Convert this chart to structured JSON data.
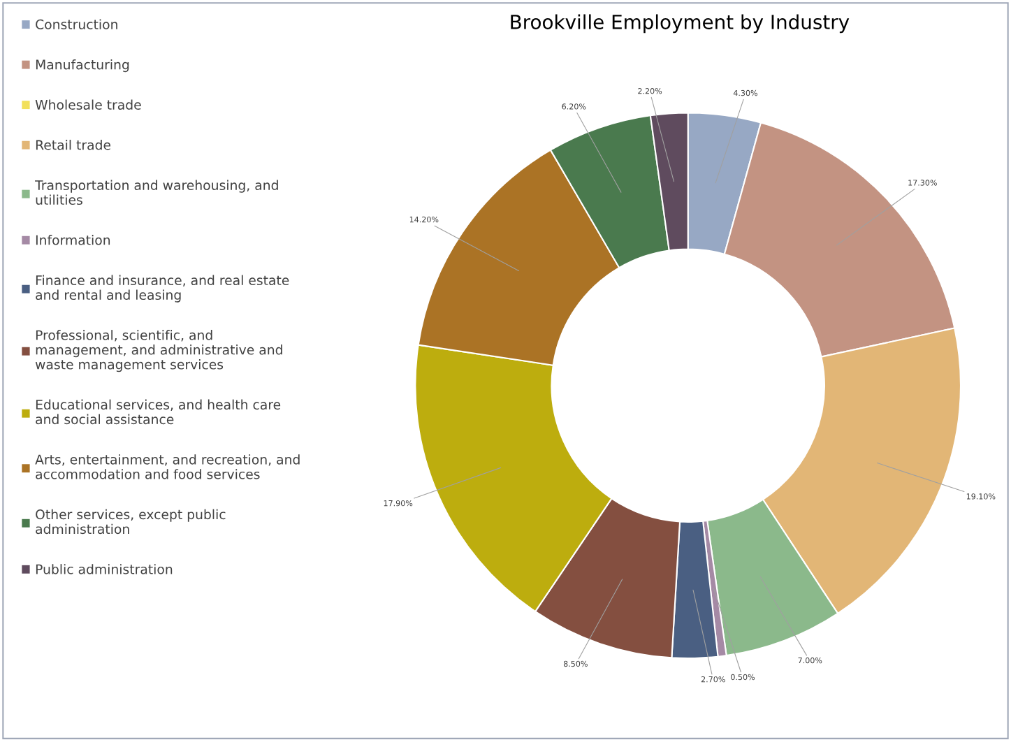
{
  "chart_data": {
    "type": "donut",
    "title": "Brookville Employment by Industry",
    "categories": [
      "Construction",
      "Manufacturing",
      "Wholesale trade",
      "Retail trade",
      "Transportation and warehousing, and\nutilities",
      "Information",
      "Finance and insurance, and real estate\nand rental and leasing",
      "Professional, scientific, and\nmanagement, and administrative and\nwaste management services",
      "Educational services, and health care\nand social assistance",
      "Arts, entertainment, and recreation, and\naccommodation and food services",
      "Other services, except public\nadministration",
      "Public administration"
    ],
    "values": [
      4.3,
      17.3,
      0,
      19.1,
      7.0,
      0.5,
      2.7,
      8.5,
      17.9,
      14.2,
      6.2,
      2.2
    ],
    "value_labels": [
      "4.30%",
      "17.30%",
      null,
      "19.10%",
      "7.00%",
      "0.50%",
      "2.70%",
      "8.50%",
      "17.90%",
      "14.20%",
      "6.20%",
      "2.20%"
    ],
    "colors": [
      "#97a8c4",
      "#c39382",
      "#f2e05a",
      "#e2b676",
      "#8bb98b",
      "#a58aa5",
      "#4a5f82",
      "#844f40",
      "#bdad0e",
      "#ab7325",
      "#4a7a4e",
      "#5f4b5e"
    ],
    "legend": "left"
  }
}
